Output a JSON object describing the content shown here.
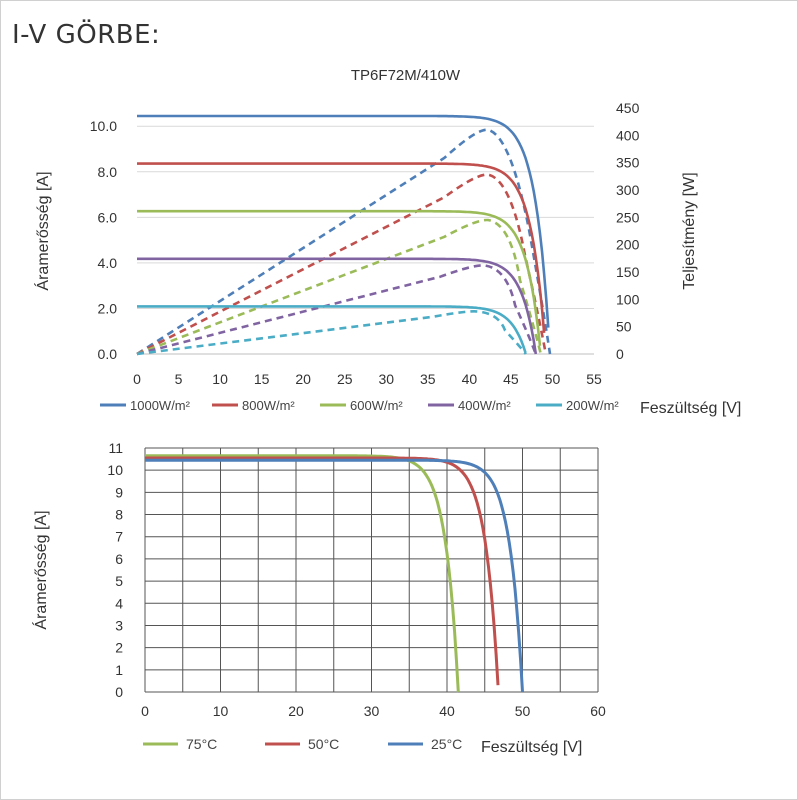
{
  "page": {
    "title": "I-V GÖRBE:"
  },
  "chart_data": [
    {
      "type": "line",
      "title": "TP6F72M/410W",
      "xlabel": "Feszültség [V]",
      "ylabel": "Áramerősség [A]",
      "y2label": "Teljesítmény [W]",
      "xlim": [
        0,
        55
      ],
      "ylim": [
        0,
        10.8
      ],
      "y2lim": [
        0,
        450
      ],
      "xticks": [
        0,
        5,
        10,
        15,
        20,
        25,
        30,
        35,
        40,
        45,
        50,
        55
      ],
      "yticks": [
        0,
        2,
        4,
        6,
        8,
        10
      ],
      "yticklabels": [
        "0.0",
        "2.0",
        "4.0",
        "6.0",
        "8.0",
        "10.0"
      ],
      "y2ticks": [
        0,
        50,
        100,
        150,
        200,
        250,
        300,
        350,
        400,
        450
      ],
      "grid": "horizontal",
      "legend": "bottom",
      "series": [
        {
          "name": "1000W/m²",
          "color": "#4f7fb8",
          "isc": 10.45,
          "voc": 49.7,
          "vmp": 42.0,
          "pmax": 410
        },
        {
          "name": "800W/m²",
          "color": "#c0504d",
          "isc": 8.36,
          "voc": 49.2,
          "vmp": 42.0,
          "pmax": 328
        },
        {
          "name": "600W/m²",
          "color": "#9bbb59",
          "isc": 6.27,
          "voc": 48.6,
          "vmp": 42.0,
          "pmax": 245
        },
        {
          "name": "400W/m²",
          "color": "#8064a2",
          "isc": 4.18,
          "voc": 48.0,
          "vmp": 41.5,
          "pmax": 162
        },
        {
          "name": "200W/m²",
          "color": "#4bacc6",
          "isc": 2.09,
          "voc": 46.8,
          "vmp": 40.5,
          "pmax": 78
        }
      ]
    },
    {
      "type": "line",
      "xlabel": "Feszültség [V]",
      "ylabel": "Áramerősség [A]",
      "xlim": [
        0,
        60
      ],
      "ylim": [
        0,
        11
      ],
      "xticks": [
        0,
        10,
        20,
        30,
        40,
        50,
        60
      ],
      "yticks": [
        0,
        1,
        2,
        3,
        4,
        5,
        6,
        7,
        8,
        9,
        10,
        11
      ],
      "grid": "both",
      "legend": "bottom",
      "series": [
        {
          "name": "75°C",
          "color": "#9bbb59",
          "isc": 10.65,
          "voc": 41.5
        },
        {
          "name": "50°C",
          "color": "#c0504d",
          "isc": 10.55,
          "voc": 46.8
        },
        {
          "name": "25°C",
          "color": "#4f7fb8",
          "isc": 10.45,
          "voc": 50.0
        }
      ]
    }
  ]
}
